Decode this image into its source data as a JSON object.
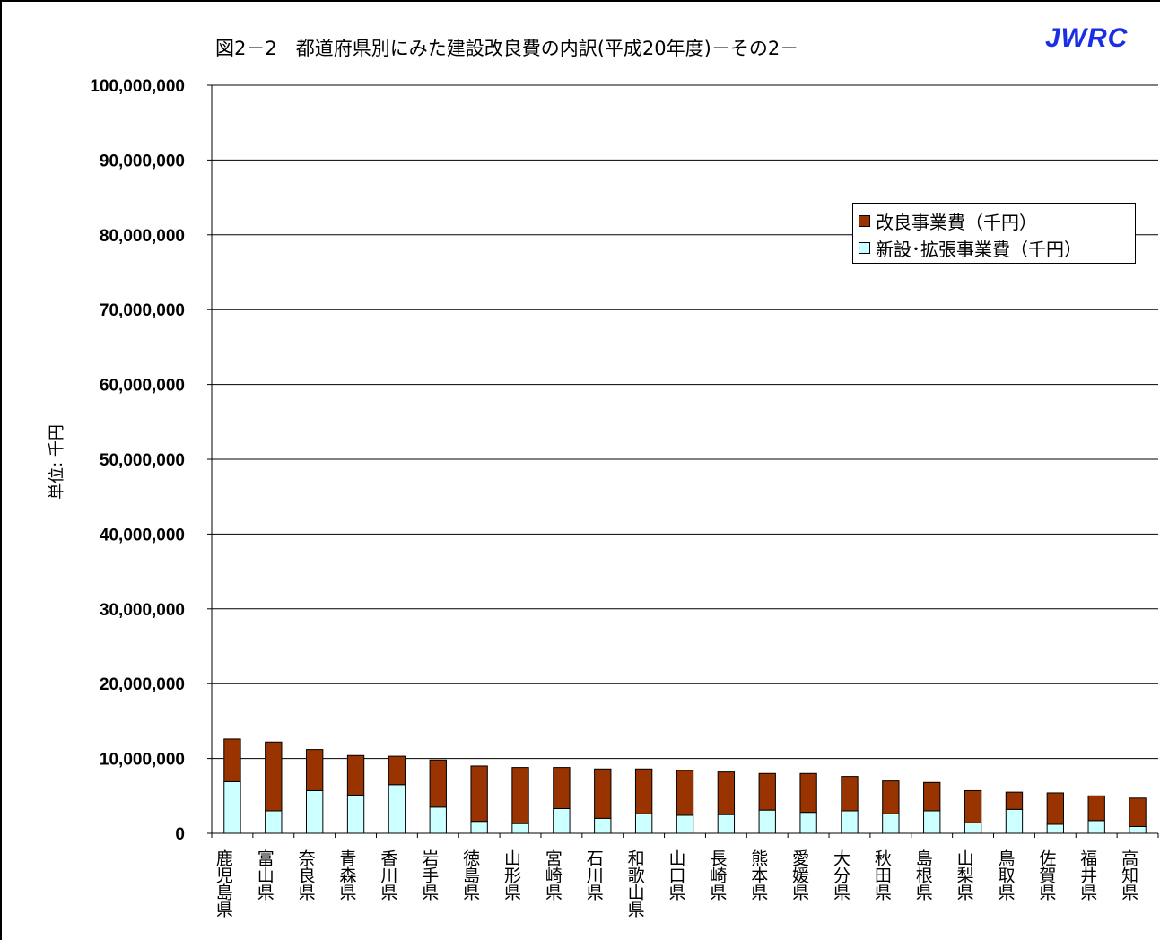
{
  "title": "図2－2　都道府県別にみた建設改良費の内訳(平成20年度)－その2－",
  "brand": "JWRC",
  "colors": {
    "kairyo": "#993300",
    "shinsetsu": "#ccffff"
  },
  "chart_data": {
    "type": "bar",
    "stacked": true,
    "ylabel": "単位: 千円",
    "ylim": [
      0,
      100000000
    ],
    "yticks": [
      0,
      10000000,
      20000000,
      30000000,
      40000000,
      50000000,
      60000000,
      70000000,
      80000000,
      90000000,
      100000000
    ],
    "ytick_labels": [
      "0",
      "10,000,000",
      "20,000,000",
      "30,000,000",
      "40,000,000",
      "50,000,000",
      "60,000,000",
      "70,000,000",
      "80,000,000",
      "90,000,000",
      "100,000,000"
    ],
    "grid": true,
    "legend_position": "top-right",
    "categories": [
      "鹿児島県",
      "富山県",
      "奈良県",
      "青森県",
      "香川県",
      "岩手県",
      "徳島県",
      "山形県",
      "宮崎県",
      "石川県",
      "和歌山県",
      "山口県",
      "長崎県",
      "熊本県",
      "愛媛県",
      "大分県",
      "秋田県",
      "島根県",
      "山梨県",
      "鳥取県",
      "佐賀県",
      "福井県",
      "高知県"
    ],
    "series": [
      {
        "name": "新設･拡張事業費（千円）",
        "values": [
          6900000,
          3000000,
          5700000,
          5100000,
          6500000,
          3500000,
          1600000,
          1300000,
          3300000,
          2000000,
          2600000,
          2400000,
          2500000,
          3100000,
          2800000,
          3000000,
          2600000,
          3000000,
          1400000,
          3200000,
          1200000,
          1700000,
          900000
        ]
      },
      {
        "name": "改良事業費（千円）",
        "values": [
          5700000,
          9200000,
          5500000,
          5300000,
          3800000,
          6300000,
          7400000,
          7500000,
          5500000,
          6600000,
          6000000,
          6000000,
          5700000,
          4900000,
          5200000,
          4600000,
          4400000,
          3800000,
          4300000,
          2300000,
          4200000,
          3300000,
          3800000
        ]
      }
    ]
  }
}
